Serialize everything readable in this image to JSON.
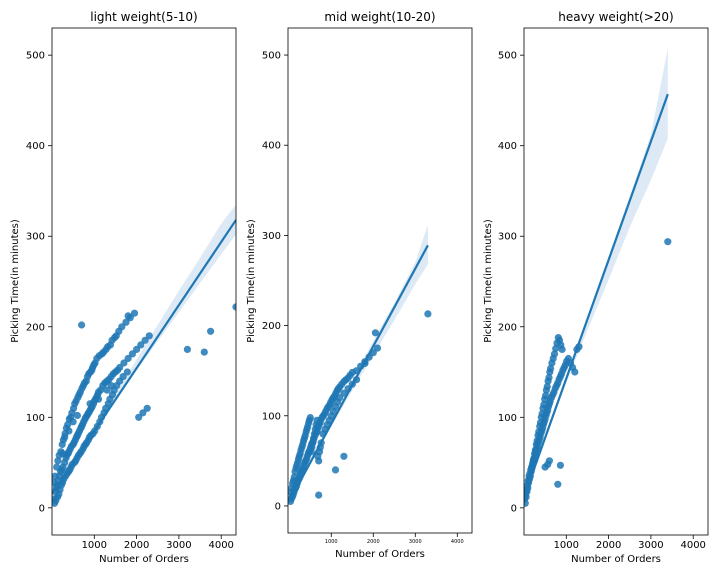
{
  "colors": {
    "points": "#1f77b4",
    "fit_line": "#1f77b4",
    "band": "#c6dbef",
    "background": "#ffffff",
    "axes": "#000000"
  },
  "chart_data": [
    {
      "type": "scatter",
      "title": "light weight(5-10)",
      "xlabel": "Number of Orders",
      "ylabel": "Picking Time(in minutes)",
      "xlim": [
        0,
        4350
      ],
      "ylim": [
        -30,
        530
      ],
      "x_ticks": [
        1000,
        2000,
        3000,
        4000
      ],
      "y_ticks": [
        0,
        100,
        200,
        300,
        400,
        500
      ],
      "x_tick_labels": [
        "1000",
        "2000",
        "3000",
        "4000"
      ],
      "y_tick_labels": [
        "0",
        "100",
        "200",
        "300",
        "400",
        "500"
      ],
      "fit_line": {
        "x": [
          0,
          4350
        ],
        "y": [
          15,
          318
        ]
      },
      "confidence_band": {
        "x": [
          1000,
          1500,
          2000,
          2500,
          3000,
          3500,
          4000,
          4350
        ],
        "lower": [
          83,
          118,
          152,
          184,
          216,
          248,
          280,
          302
        ],
        "upper": [
          89,
          126,
          164,
          202,
          240,
          276,
          314,
          335
        ]
      },
      "points": {
        "x": [
          50,
          80,
          100,
          120,
          150,
          180,
          200,
          230,
          260,
          300,
          330,
          350,
          380,
          400,
          430,
          460,
          500,
          520,
          550,
          580,
          600,
          620,
          650,
          680,
          700,
          720,
          750,
          780,
          800,
          830,
          850,
          880,
          900,
          930,
          950,
          980,
          1000,
          1030,
          1050,
          1080,
          1100,
          1150,
          1200,
          1250,
          1300,
          1350,
          1400,
          1450,
          1500,
          1550,
          1600,
          1700,
          1800,
          1900,
          2000,
          2100,
          2200,
          2300,
          40,
          70,
          110,
          140,
          170,
          210,
          240,
          270,
          310,
          340,
          370,
          410,
          440,
          470,
          510,
          540,
          570,
          610,
          640,
          670,
          710,
          740,
          770,
          810,
          840,
          870,
          910,
          940,
          960,
          990,
          1020,
          1060,
          1120,
          1180,
          1220,
          1280,
          1320,
          1380,
          1420,
          1480,
          1520,
          1580,
          1650,
          1750,
          1850,
          1950,
          60,
          90,
          130,
          160,
          190,
          220,
          250,
          280,
          320,
          360,
          390,
          420,
          450,
          480,
          530,
          560,
          590,
          630,
          660,
          690,
          730,
          760,
          790,
          820,
          860,
          890,
          920,
          970,
          1010,
          1070,
          1130,
          1170,
          1230,
          1270,
          1330,
          1370,
          1430,
          1470,
          1530,
          1600,
          1680,
          1780,
          2050,
          2150,
          2250,
          3200,
          3600,
          3750,
          4350,
          700,
          1800,
          250,
          300,
          400,
          500,
          600,
          900,
          1100,
          1300,
          1400
        ],
        "y": [
          10,
          18,
          22,
          25,
          30,
          35,
          40,
          42,
          45,
          50,
          55,
          58,
          60,
          62,
          65,
          68,
          70,
          72,
          75,
          78,
          80,
          82,
          85,
          88,
          90,
          92,
          95,
          98,
          100,
          102,
          104,
          106,
          108,
          110,
          112,
          115,
          118,
          120,
          122,
          125,
          128,
          130,
          135,
          138,
          140,
          142,
          145,
          148,
          150,
          152,
          155,
          160,
          165,
          170,
          175,
          180,
          185,
          190,
          28,
          35,
          45,
          52,
          58,
          62,
          70,
          75,
          82,
          88,
          92,
          98,
          100,
          105,
          110,
          115,
          118,
          122,
          125,
          128,
          132,
          135,
          138,
          140,
          145,
          148,
          150,
          152,
          155,
          158,
          160,
          165,
          168,
          170,
          172,
          175,
          178,
          180,
          185,
          188,
          190,
          195,
          200,
          205,
          210,
          215,
          5,
          8,
          12,
          15,
          20,
          25,
          28,
          32,
          35,
          38,
          40,
          42,
          45,
          48,
          50,
          52,
          55,
          58,
          60,
          62,
          65,
          68,
          70,
          72,
          75,
          78,
          80,
          82,
          85,
          90,
          95,
          100,
          105,
          110,
          115,
          120,
          125,
          130,
          135,
          140,
          145,
          150,
          100,
          105,
          110,
          175,
          172,
          195,
          222,
          202,
          212,
          60,
          78,
          85,
          95,
          102,
          115,
          120,
          130,
          135
        ]
      }
    },
    {
      "type": "scatter",
      "title": "mid weight(10-20)",
      "xlabel": "Number of Orders",
      "ylabel": "Picking Time(in minutes)",
      "xlim": [
        -30,
        4350
      ],
      "ylim": [
        -30,
        530
      ],
      "x_ticks": [
        1000,
        2000,
        3000,
        4000
      ],
      "y_ticks": [
        0,
        100,
        200,
        300,
        400,
        500
      ],
      "x_tick_labels": [
        "1000",
        "2000",
        "3000",
        "4000"
      ],
      "y_tick_labels": [
        "0",
        "100",
        "200",
        "300",
        "400",
        "500"
      ],
      "fit_line": {
        "x": [
          0,
          3300
        ],
        "y": [
          5,
          289
        ]
      },
      "confidence_band": {
        "x": [
          0,
          500,
          1000,
          1500,
          2000,
          2500,
          3000,
          3300
        ],
        "lower": [
          0,
          47,
          88,
          128,
          167,
          206,
          246,
          268
        ],
        "upper": [
          10,
          53,
          95,
          139,
          183,
          225,
          270,
          312
        ]
      },
      "points": {
        "x": [
          30,
          50,
          70,
          90,
          110,
          130,
          150,
          170,
          190,
          210,
          230,
          250,
          270,
          290,
          310,
          330,
          350,
          370,
          390,
          410,
          430,
          450,
          470,
          490,
          510,
          530,
          550,
          570,
          590,
          610,
          630,
          650,
          670,
          690,
          710,
          730,
          750,
          780,
          810,
          840,
          870,
          900,
          930,
          960,
          990,
          1020,
          1050,
          1080,
          1110,
          1140,
          1170,
          1200,
          1250,
          1300,
          1350,
          1400,
          1450,
          1500,
          1600,
          1700,
          1800,
          1900,
          2000,
          2100,
          40,
          60,
          80,
          100,
          120,
          140,
          160,
          180,
          200,
          220,
          240,
          260,
          280,
          300,
          320,
          340,
          360,
          380,
          400,
          420,
          440,
          460,
          480,
          500,
          520,
          540,
          560,
          580,
          600,
          620,
          640,
          660,
          680,
          700,
          720,
          740,
          760,
          800,
          850,
          900,
          950,
          1000,
          1050,
          1100,
          1150,
          1200,
          1300,
          1400,
          1500,
          1600,
          1800,
          2050,
          3300,
          700,
          1100,
          1300
        ],
        "y": [
          5,
          8,
          10,
          12,
          15,
          18,
          20,
          22,
          25,
          28,
          30,
          32,
          35,
          38,
          40,
          42,
          45,
          48,
          50,
          52,
          55,
          58,
          60,
          62,
          65,
          68,
          70,
          72,
          75,
          78,
          80,
          82,
          85,
          88,
          90,
          92,
          95,
          98,
          100,
          102,
          105,
          108,
          110,
          112,
          115,
          118,
          120,
          122,
          125,
          128,
          130,
          132,
          135,
          138,
          140,
          142,
          145,
          148,
          150,
          155,
          160,
          165,
          170,
          175,
          15,
          20,
          25,
          28,
          32,
          38,
          42,
          45,
          48,
          52,
          55,
          58,
          62,
          65,
          68,
          72,
          75,
          78,
          82,
          85,
          88,
          92,
          95,
          98,
          60,
          65,
          70,
          75,
          80,
          85,
          90,
          95,
          55,
          50,
          60,
          65,
          70,
          80,
          85,
          90,
          95,
          100,
          105,
          110,
          115,
          120,
          125,
          130,
          135,
          140,
          158,
          192,
          213,
          12,
          40,
          55
        ]
      }
    },
    {
      "type": "scatter",
      "title": "heavy weight(>20)",
      "xlabel": "Number of Orders",
      "ylabel": "Picking Time(in minutes)",
      "xlim": [
        0,
        4350
      ],
      "ylim": [
        -30,
        530
      ],
      "x_ticks": [
        1000,
        2000,
        3000,
        4000
      ],
      "y_ticks": [
        0,
        100,
        200,
        300,
        400,
        500
      ],
      "x_tick_labels": [
        "1000",
        "2000",
        "3000",
        "4000"
      ],
      "y_tick_labels": [
        "0",
        "100",
        "200",
        "300",
        "400",
        "500"
      ],
      "fit_line": {
        "x": [
          0,
          3400
        ],
        "y": [
          12,
          457
        ]
      },
      "confidence_band": {
        "x": [
          0,
          500,
          1000,
          1500,
          2000,
          2500,
          3000,
          3400
        ],
        "lower": [
          5,
          75,
          138,
          196,
          252,
          310,
          362,
          408
        ],
        "upper": [
          18,
          81,
          146,
          212,
          278,
          344,
          412,
          507
        ]
      },
      "points": {
        "x": [
          20,
          40,
          60,
          80,
          100,
          120,
          140,
          160,
          180,
          200,
          220,
          240,
          260,
          280,
          300,
          320,
          340,
          360,
          380,
          400,
          420,
          440,
          460,
          480,
          500,
          520,
          540,
          560,
          580,
          600,
          620,
          650,
          680,
          710,
          740,
          770,
          800,
          830,
          860,
          890,
          920,
          950,
          980,
          1010,
          1050,
          1100,
          1150,
          1200,
          1250,
          1300,
          30,
          50,
          70,
          90,
          110,
          130,
          150,
          170,
          190,
          210,
          230,
          250,
          270,
          290,
          310,
          330,
          350,
          370,
          390,
          410,
          430,
          450,
          470,
          490,
          510,
          530,
          550,
          570,
          590,
          610,
          630,
          660,
          690,
          720,
          750,
          780,
          810,
          840,
          870,
          900,
          3400,
          800,
          860,
          500,
          560,
          600
        ],
        "y": [
          10,
          15,
          20,
          25,
          30,
          35,
          38,
          42,
          45,
          48,
          52,
          55,
          58,
          62,
          65,
          68,
          72,
          75,
          78,
          82,
          85,
          88,
          92,
          95,
          98,
          102,
          105,
          108,
          112,
          115,
          118,
          122,
          125,
          128,
          132,
          135,
          138,
          142,
          145,
          148,
          152,
          155,
          158,
          162,
          165,
          160,
          155,
          150,
          175,
          178,
          5,
          12,
          18,
          22,
          28,
          32,
          35,
          40,
          44,
          50,
          54,
          60,
          64,
          70,
          74,
          80,
          84,
          90,
          94,
          100,
          104,
          110,
          114,
          120,
          124,
          130,
          134,
          140,
          144,
          150,
          154,
          160,
          165,
          170,
          176,
          182,
          188,
          185,
          180,
          175,
          294,
          26,
          47,
          45,
          48,
          52
        ]
      }
    }
  ]
}
